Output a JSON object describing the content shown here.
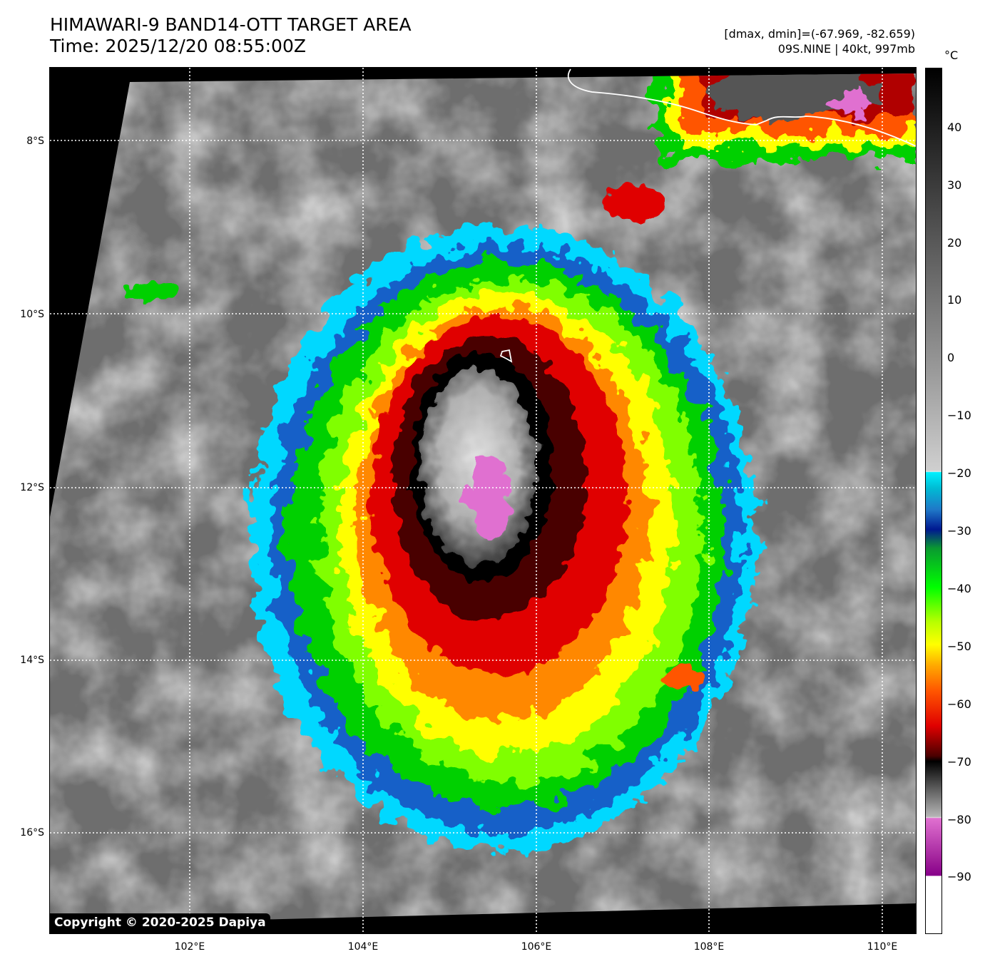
{
  "title": {
    "line1": "HIMAWARI-9 BAND14-OTT TARGET AREA",
    "line2": "Time: 2025/12/20 08:55:00Z"
  },
  "info": {
    "line1": "[dmax, dmin]=(-67.969, -82.659)",
    "line2": "09S.NINE | 40kt, 997mb"
  },
  "copyright": "Copyright © 2020-2025 Dapiya",
  "axes": {
    "lat_labels": [
      "8°S",
      "10°S",
      "12°S",
      "14°S",
      "16°S"
    ],
    "lon_labels": [
      "102°E",
      "104°E",
      "106°E",
      "108°E",
      "110°E"
    ]
  },
  "colorbar": {
    "unit": "°C",
    "ticks": [
      "40",
      "30",
      "20",
      "10",
      "0",
      "−10",
      "−20",
      "−30",
      "−40",
      "−50",
      "−60",
      "−70",
      "−80",
      "−90"
    ]
  },
  "colors": {
    "cold_cap": "#e070d0",
    "ring_dark": "#3a0000",
    "red": "#e00000",
    "orange": "#ff8800",
    "yellow": "#ffff00",
    "green": "#00e000",
    "blue": "#1050c0",
    "cyan": "#00e0ff",
    "background_cloud": "#8a8a8a"
  }
}
